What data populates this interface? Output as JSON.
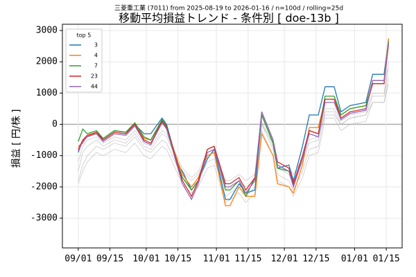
{
  "chart_data": {
    "type": "line",
    "title": "移動平均損益トレンド - 条件別 [ doe-13b ]",
    "subtitle": "三菱重工業 (7011) from 2025-08-19 to 2026-01-16 / n=100d / rolling=25d",
    "ylabel": "損益 [ 円/株 ]",
    "legend_title": "top 5",
    "legend": "upper left",
    "grid": true,
    "x": [
      "09/01",
      "09/03",
      "09/05",
      "09/09",
      "09/12",
      "09/17",
      "09/22",
      "09/26",
      "09/30",
      "10/03",
      "10/08",
      "10/10",
      "10/15",
      "10/17",
      "10/21",
      "10/24",
      "10/28",
      "10/31",
      "11/05",
      "11/07",
      "11/11",
      "11/14",
      "11/18",
      "11/21",
      "11/26",
      "11/28",
      "12/03",
      "12/05",
      "12/09",
      "12/12",
      "12/16",
      "12/19",
      "12/23",
      "12/26",
      "12/30",
      "01/06",
      "01/09",
      "01/14",
      "01/16"
    ],
    "xlim": [
      "08/25",
      "01/22"
    ],
    "xticks": [
      "09/01",
      "09/15",
      "10/01",
      "10/15",
      "11/01",
      "11/15",
      "12/01",
      "12/15",
      "01/01",
      "01/15"
    ],
    "ylim": [
      -3950,
      3200
    ],
    "yticks": [
      -3000,
      -2000,
      -1000,
      0,
      1000,
      2000,
      3000
    ],
    "background_color": "#aaaaaa",
    "background_series": [
      {
        "values": [
          -1800,
          -1300,
          -1000,
          -700,
          -800,
          -600,
          -700,
          -400,
          -800,
          -900,
          -500,
          -600,
          -1400,
          -1700,
          -2000,
          -1800,
          -1200,
          -1100,
          -2300,
          -2200,
          -2000,
          -2300,
          -2000,
          0,
          -800,
          -1600,
          -1800,
          -2100,
          -1500,
          -800,
          -700,
          400,
          400,
          0,
          200,
          300,
          900,
          900,
          1800
        ]
      },
      {
        "values": [
          -1500,
          -900,
          -700,
          -500,
          -700,
          -500,
          -600,
          -300,
          -700,
          -800,
          -300,
          -400,
          -1200,
          -1500,
          -1800,
          -1600,
          -1000,
          -900,
          -2100,
          -2000,
          -1800,
          -2000,
          -1800,
          100,
          -700,
          -1400,
          -1600,
          -1900,
          -1200,
          -600,
          -500,
          500,
          500,
          100,
          300,
          400,
          1000,
          1000,
          2000
        ]
      },
      {
        "values": [
          -1200,
          -700,
          -500,
          -400,
          -600,
          -400,
          -500,
          -200,
          -600,
          -700,
          -200,
          -300,
          -1100,
          -1400,
          -1700,
          -1500,
          -900,
          -800,
          -1800,
          -1800,
          -1600,
          -1800,
          -1600,
          0,
          -600,
          -1200,
          -1400,
          -1600,
          -1100,
          -500,
          -400,
          300,
          300,
          0,
          200,
          300,
          700,
          700,
          1500
        ]
      },
      {
        "values": [
          -1900,
          -1500,
          -1200,
          -900,
          -1000,
          -800,
          -900,
          -600,
          -1000,
          -1100,
          -700,
          -800,
          -1600,
          -1900,
          -2200,
          -2000,
          -1400,
          -1300,
          -2500,
          -2400,
          -2200,
          -2500,
          -2200,
          -200,
          -1000,
          -1800,
          -2000,
          -2300,
          -1700,
          -1000,
          -900,
          200,
          200,
          -200,
          0,
          100,
          700,
          700,
          1300
        ]
      }
    ],
    "series": [
      {
        "name": "3",
        "color": "#1f77b4",
        "values": [
          -900,
          -500,
          -400,
          -250,
          -450,
          -200,
          -250,
          0,
          -300,
          -300,
          200,
          0,
          -1300,
          -1500,
          -2100,
          -1800,
          -1100,
          -800,
          -2400,
          -2400,
          -1900,
          -2200,
          -2100,
          300,
          -600,
          -1400,
          -1300,
          -1800,
          -700,
          300,
          300,
          1200,
          1200,
          400,
          600,
          700,
          1600,
          1600,
          2700
        ]
      },
      {
        "name": "4",
        "color": "#ff7f0e",
        "values": [
          -700,
          -600,
          -350,
          -300,
          -500,
          -250,
          -300,
          0,
          -450,
          -500,
          100,
          -100,
          -1200,
          -1600,
          -2000,
          -1700,
          -1000,
          -900,
          -2600,
          -2600,
          -2000,
          -2300,
          -2300,
          -300,
          -1000,
          -1900,
          -2000,
          -2200,
          -1300,
          -100,
          -100,
          800,
          800,
          300,
          500,
          600,
          1400,
          1400,
          2750
        ]
      },
      {
        "name": "7",
        "color": "#2ca02c",
        "values": [
          -550,
          -150,
          -300,
          -200,
          -450,
          -200,
          -250,
          50,
          -400,
          -500,
          150,
          -50,
          -1300,
          -1700,
          -2100,
          -1800,
          -800,
          -700,
          -2100,
          -2100,
          -1800,
          -2300,
          -1700,
          300,
          -600,
          -1400,
          -1500,
          -1900,
          -1100,
          -200,
          -300,
          900,
          900,
          300,
          500,
          600,
          1300,
          1300,
          2650
        ]
      },
      {
        "name": "23",
        "color": "#d62728",
        "values": [
          -800,
          -500,
          -350,
          -250,
          -500,
          -250,
          -300,
          0,
          -500,
          -600,
          100,
          -100,
          -1300,
          -1800,
          -2300,
          -1800,
          -800,
          -700,
          -1900,
          -1900,
          -1700,
          -2100,
          -1700,
          400,
          -500,
          -1200,
          -1400,
          -1900,
          -1000,
          -200,
          -300,
          800,
          800,
          200,
          400,
          500,
          1300,
          1300,
          2550
        ]
      },
      {
        "name": "44",
        "color": "#9467bd",
        "values": [
          -850,
          -550,
          -400,
          -300,
          -550,
          -300,
          -350,
          -50,
          -550,
          -650,
          50,
          -150,
          -1400,
          -1900,
          -2400,
          -1900,
          -900,
          -800,
          -2000,
          -2000,
          -1800,
          -2200,
          -1800,
          400,
          -500,
          -1300,
          -1500,
          -2000,
          -1100,
          -300,
          -400,
          700,
          700,
          150,
          350,
          450,
          1400,
          1400,
          2600
        ]
      }
    ]
  }
}
